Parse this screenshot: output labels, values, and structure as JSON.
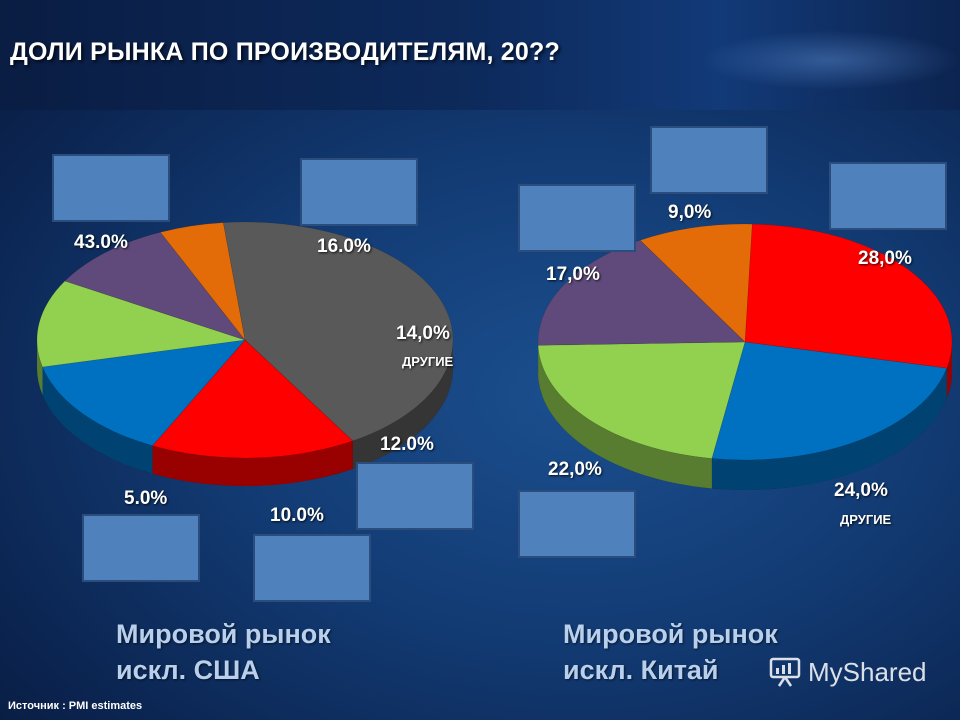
{
  "title": "ДОЛИ РЫНКА ПО ПРОИЗВОДИТЕЛЯМ, 20??",
  "source": "Источник : PMI estimates",
  "watermark": "MyShared",
  "chart_data": [
    {
      "type": "pie",
      "caption_line1": "Мировой рынок",
      "caption_line2": "искл. США",
      "slices": [
        {
          "value": 43.0,
          "label": "43.0%",
          "color": "#595959"
        },
        {
          "value": 16.0,
          "label": "16.0%",
          "color": "#ff0000"
        },
        {
          "value": 14.0,
          "label": "14,0%",
          "sublabel": "ДРУГИЕ",
          "color": "#0070c0"
        },
        {
          "value": 12.0,
          "label": "12.0%",
          "color": "#92d050"
        },
        {
          "value": 10.0,
          "label": "10.0%",
          "color": "#604a7b"
        },
        {
          "value": 5.0,
          "label": "5.0%",
          "color": "#e36c09"
        }
      ]
    },
    {
      "type": "pie",
      "caption_line1": "Мировой рынок",
      "caption_line2": "искл. Китай",
      "slices": [
        {
          "value": 28.0,
          "label": "28,0%",
          "color": "#ff0000"
        },
        {
          "value": 24.0,
          "label": "24,0%",
          "sublabel": "ДРУГИЕ",
          "color": "#0070c0"
        },
        {
          "value": 22.0,
          "label": "22,0%",
          "color": "#92d050"
        },
        {
          "value": 17.0,
          "label": "17,0%",
          "color": "#604a7b"
        },
        {
          "value": 9.0,
          "label": "9,0%",
          "color": "#e36c09"
        }
      ]
    }
  ]
}
